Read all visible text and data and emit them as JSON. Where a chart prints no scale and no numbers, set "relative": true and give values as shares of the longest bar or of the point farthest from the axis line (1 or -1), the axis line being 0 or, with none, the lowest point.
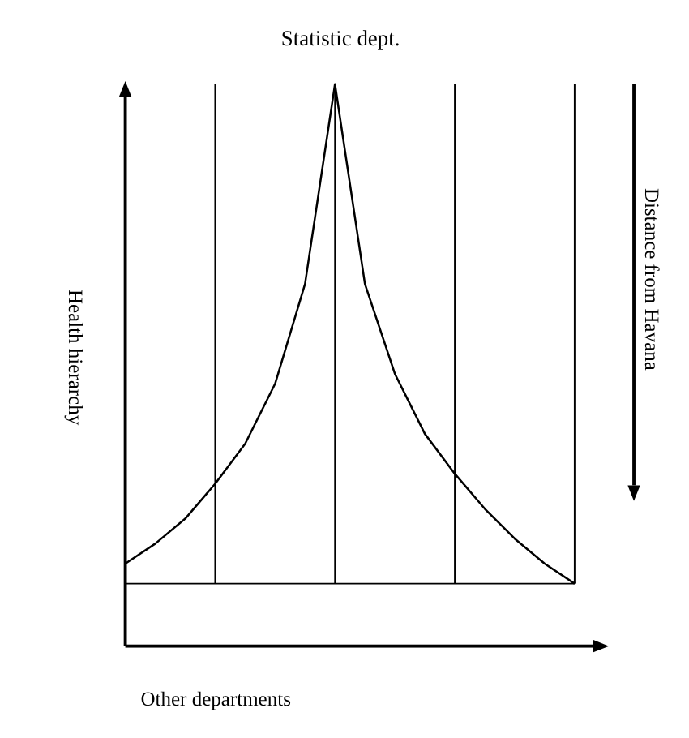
{
  "chart_data": {
    "type": "line",
    "title": "Statistic dept.",
    "ylabel": "Health hierarchy",
    "annotations": [
      "Distance from Havana",
      "Other departments"
    ],
    "relative": true,
    "categories": [
      null,
      null,
      null,
      null,
      null,
      null,
      null,
      null,
      null,
      null,
      null,
      null,
      null,
      null,
      null,
      null
    ],
    "series": [
      {
        "color": "#000000",
        "values": [
          0.04,
          0.08,
          0.13,
          0.2,
          0.28,
          0.4,
          0.6,
          1,
          0.6,
          0.42,
          0.3,
          0.22,
          0.15,
          0.09,
          0.04,
          0
        ]
      }
    ]
  }
}
